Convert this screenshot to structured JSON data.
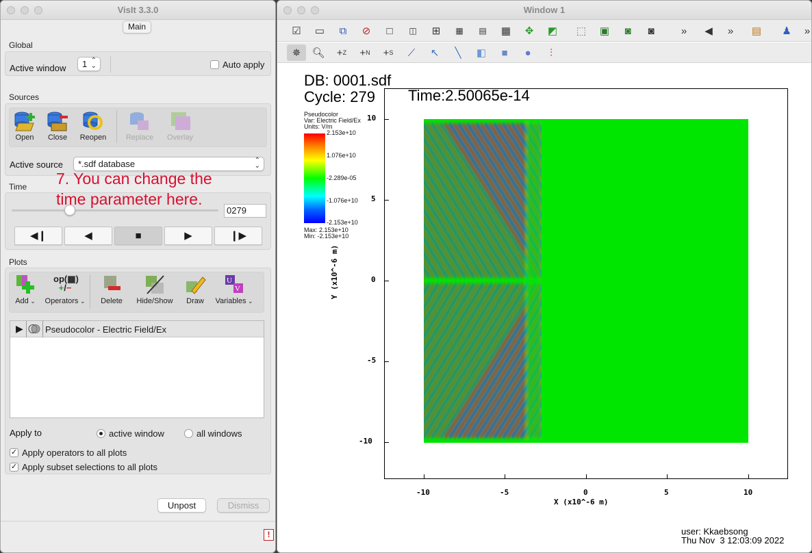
{
  "left_window": {
    "title": "VisIt 3.3.0",
    "tab": "Main",
    "global_label": "Global",
    "active_window_label": "Active window",
    "active_window_value": "1",
    "auto_apply_label": "Auto apply",
    "sources_label": "Sources",
    "source_tools": [
      {
        "label": "Open",
        "icon": "open-icon"
      },
      {
        "label": "Close",
        "icon": "close-db-icon"
      },
      {
        "label": "Reopen",
        "icon": "reopen-icon"
      },
      {
        "label": "Replace",
        "icon": "replace-icon"
      },
      {
        "label": "Overlay",
        "icon": "overlay-icon"
      }
    ],
    "active_source_label": "Active source",
    "active_source_value": "*.sdf database",
    "time_label": "Time",
    "time_value": "0279",
    "slider_fraction": 0.27,
    "annotation": "7. You can change the\ntime parameter here.",
    "playback": [
      "◀❙",
      "◀",
      "■",
      "▶",
      "❙▶"
    ],
    "plots_label": "Plots",
    "plot_tools": [
      {
        "label": "Add",
        "icon": "add-plot-icon"
      },
      {
        "label": "Operators",
        "icon": "operators-icon"
      },
      {
        "label": "Delete",
        "icon": "delete-icon"
      },
      {
        "label": "Hide/Show",
        "icon": "hide-show-icon"
      },
      {
        "label": "Draw",
        "icon": "draw-icon"
      },
      {
        "label": "Variables",
        "icon": "variables-icon"
      }
    ],
    "plot_list_item": "Pseudocolor - Electric Field/Ex",
    "apply_to_label": "Apply to",
    "radio_active": "active window",
    "radio_all": "all windows",
    "check_operators": "Apply operators to all plots",
    "check_subset": "Apply subset selections to all plots",
    "unpost_label": "Unpost",
    "dismiss_label": "Dismiss"
  },
  "right_window": {
    "title": "Window 1",
    "db_text": "DB: 0001.sdf",
    "cycle_text": "Cycle: 279",
    "time_text": "Time:2.50065e-14",
    "legend": {
      "title": "Pseudocolor",
      "var": "Var: Electric Field/Ex",
      "units": "Units: V/m",
      "labels": [
        "2.153e+10",
        "1.076e+10",
        "-2.289e-05",
        "-1.076e+10",
        "-2.153e+10"
      ],
      "max": "Max:  2.153e+10",
      "min": "Min: -2.153e+10"
    },
    "x_axis_label": "X (x10^-6 m)",
    "y_axis_label": "Y (x10^-6 m)",
    "x_ticks": [
      "-10",
      "-5",
      "0",
      "5",
      "10"
    ],
    "y_ticks": [
      "10",
      "5",
      "0",
      "-5",
      "-10"
    ],
    "user_text": "user: Kkaebsong",
    "date_text": "Thu Nov  3 12:03:09 2022",
    "colors": {
      "field_bg": "#00e600",
      "positive": "#e01010",
      "negative": "#0a2aff"
    }
  }
}
